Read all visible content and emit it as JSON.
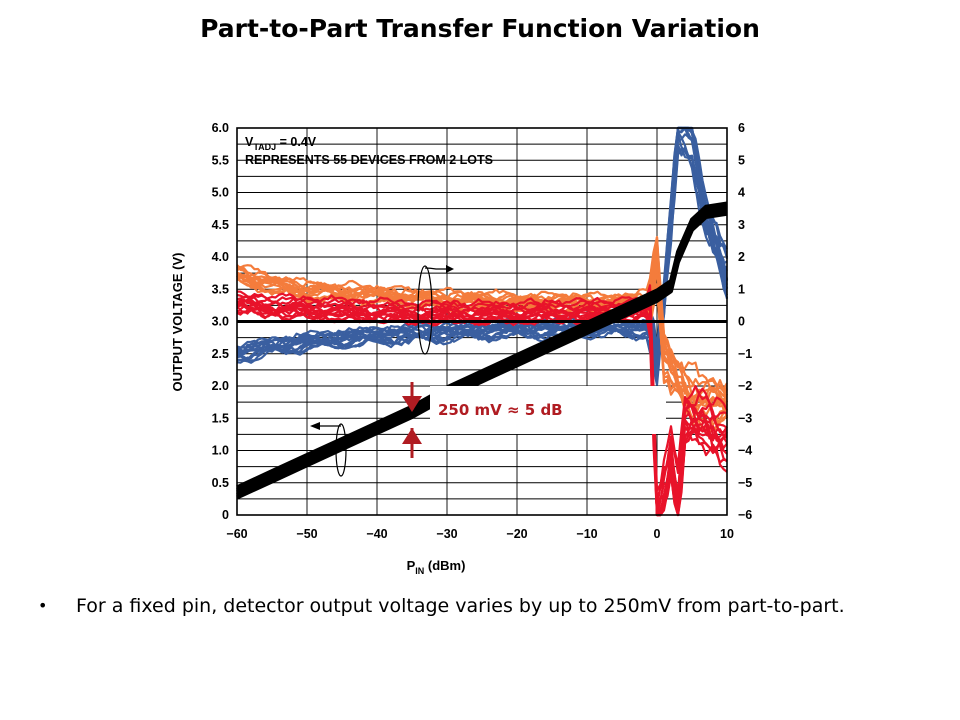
{
  "slide": {
    "title": "Part-to-Part Transfer Function Variation",
    "bullet": "For a fixed pin, detector output voltage varies by up to 250mV from part-to-part.",
    "bullet_symbol": "•"
  },
  "chart_data": {
    "type": "line",
    "title": "",
    "xlabel_main": "P",
    "xlabel_sub": "IN",
    "xlabel_unit": " (dBm)",
    "ylabel": "OUTPUT VOLTAGE (V)",
    "xlim": [
      -60,
      10
    ],
    "ylim": [
      0,
      6.0
    ],
    "y2lim": [
      -6,
      6
    ],
    "x_ticks": [
      "−60",
      "−50",
      "−40",
      "−30",
      "−20",
      "−10",
      "0",
      "10"
    ],
    "x_tick_values": [
      -60,
      -50,
      -40,
      -30,
      -20,
      -10,
      0,
      10
    ],
    "y_ticks": [
      "0",
      "0.5",
      "1.0",
      "1.5",
      "2.0",
      "2.5",
      "3.0",
      "3.5",
      "4.0",
      "4.5",
      "5.0",
      "5.5",
      "6.0"
    ],
    "y_tick_values": [
      0,
      0.5,
      1.0,
      1.5,
      2.0,
      2.5,
      3.0,
      3.5,
      4.0,
      4.5,
      5.0,
      5.5,
      6.0
    ],
    "y2_ticks": [
      "−6",
      "−5",
      "−4",
      "−3",
      "−2",
      "−1",
      "0",
      "1",
      "2",
      "3",
      "4",
      "5",
      "6"
    ],
    "y2_tick_values": [
      -6,
      -5,
      -4,
      -3,
      -2,
      -1,
      0,
      1,
      2,
      3,
      4,
      5,
      6
    ],
    "grid": true,
    "annotations": {
      "condition_prefix": "V",
      "condition_sub": "TADJ",
      "condition_value": " = 0.4V",
      "line2": "REPRESENTS 55 DEVICES FROM 2 LOTS"
    },
    "callout": {
      "text": "250 mV ≈ 5 dB",
      "color": "#b01c22"
    },
    "colors": {
      "voltage": "#000000",
      "error_low": "#3a5fa0",
      "error_mid": "#e8132a",
      "error_high": "#f47c3c"
    },
    "series": [
      {
        "role": "output-voltage",
        "x": [
          -60,
          -55,
          -50,
          -45,
          -40,
          -35,
          -30,
          -25,
          -20,
          -15,
          -10,
          -5,
          0,
          2,
          3,
          5,
          7,
          10
        ],
        "y": [
          0.35,
          0.6,
          0.85,
          1.1,
          1.35,
          1.6,
          1.9,
          2.15,
          2.4,
          2.65,
          2.9,
          3.15,
          3.4,
          3.55,
          4.0,
          4.5,
          4.7,
          4.75
        ]
      },
      {
        "role": "error-low-lot",
        "x": [
          -60,
          -55,
          -50,
          -45,
          -40,
          -35,
          -30,
          -25,
          -20,
          -15,
          -10,
          -5,
          -1,
          0,
          1,
          2,
          3,
          4,
          5,
          7,
          10
        ],
        "y": [
          -1.0,
          -0.8,
          -0.65,
          -0.55,
          -0.45,
          -0.4,
          -0.35,
          -0.3,
          -0.25,
          -0.25,
          -0.2,
          -0.2,
          -0.3,
          -1.5,
          0.5,
          3.0,
          6.0,
          6.0,
          5.5,
          3.0,
          1.5
        ]
      },
      {
        "role": "error-mid-lot",
        "x": [
          -60,
          -55,
          -50,
          -45,
          -40,
          -35,
          -30,
          -25,
          -20,
          -15,
          -10,
          -5,
          -1,
          0,
          1,
          2,
          3,
          4,
          5,
          7,
          10
        ],
        "y": [
          0.6,
          0.5,
          0.45,
          0.4,
          0.35,
          0.3,
          0.3,
          0.3,
          0.3,
          0.35,
          0.35,
          0.4,
          0.4,
          -6.0,
          -5.0,
          -4.0,
          -5.5,
          -3.0,
          -3.0,
          -3.0,
          -3.5
        ]
      },
      {
        "role": "error-high-lot",
        "x": [
          -60,
          -55,
          -50,
          -45,
          -40,
          -35,
          -30,
          -25,
          -20,
          -15,
          -10,
          -5,
          -1,
          0,
          1,
          2,
          3,
          4,
          5,
          7,
          10
        ],
        "y": [
          1.5,
          1.2,
          1.0,
          0.9,
          0.85,
          0.75,
          0.7,
          0.65,
          0.6,
          0.6,
          0.6,
          0.6,
          0.7,
          2.0,
          -1.0,
          -1.5,
          -1.8,
          -2.0,
          -2.2,
          -2.4,
          -2.6
        ]
      }
    ]
  }
}
